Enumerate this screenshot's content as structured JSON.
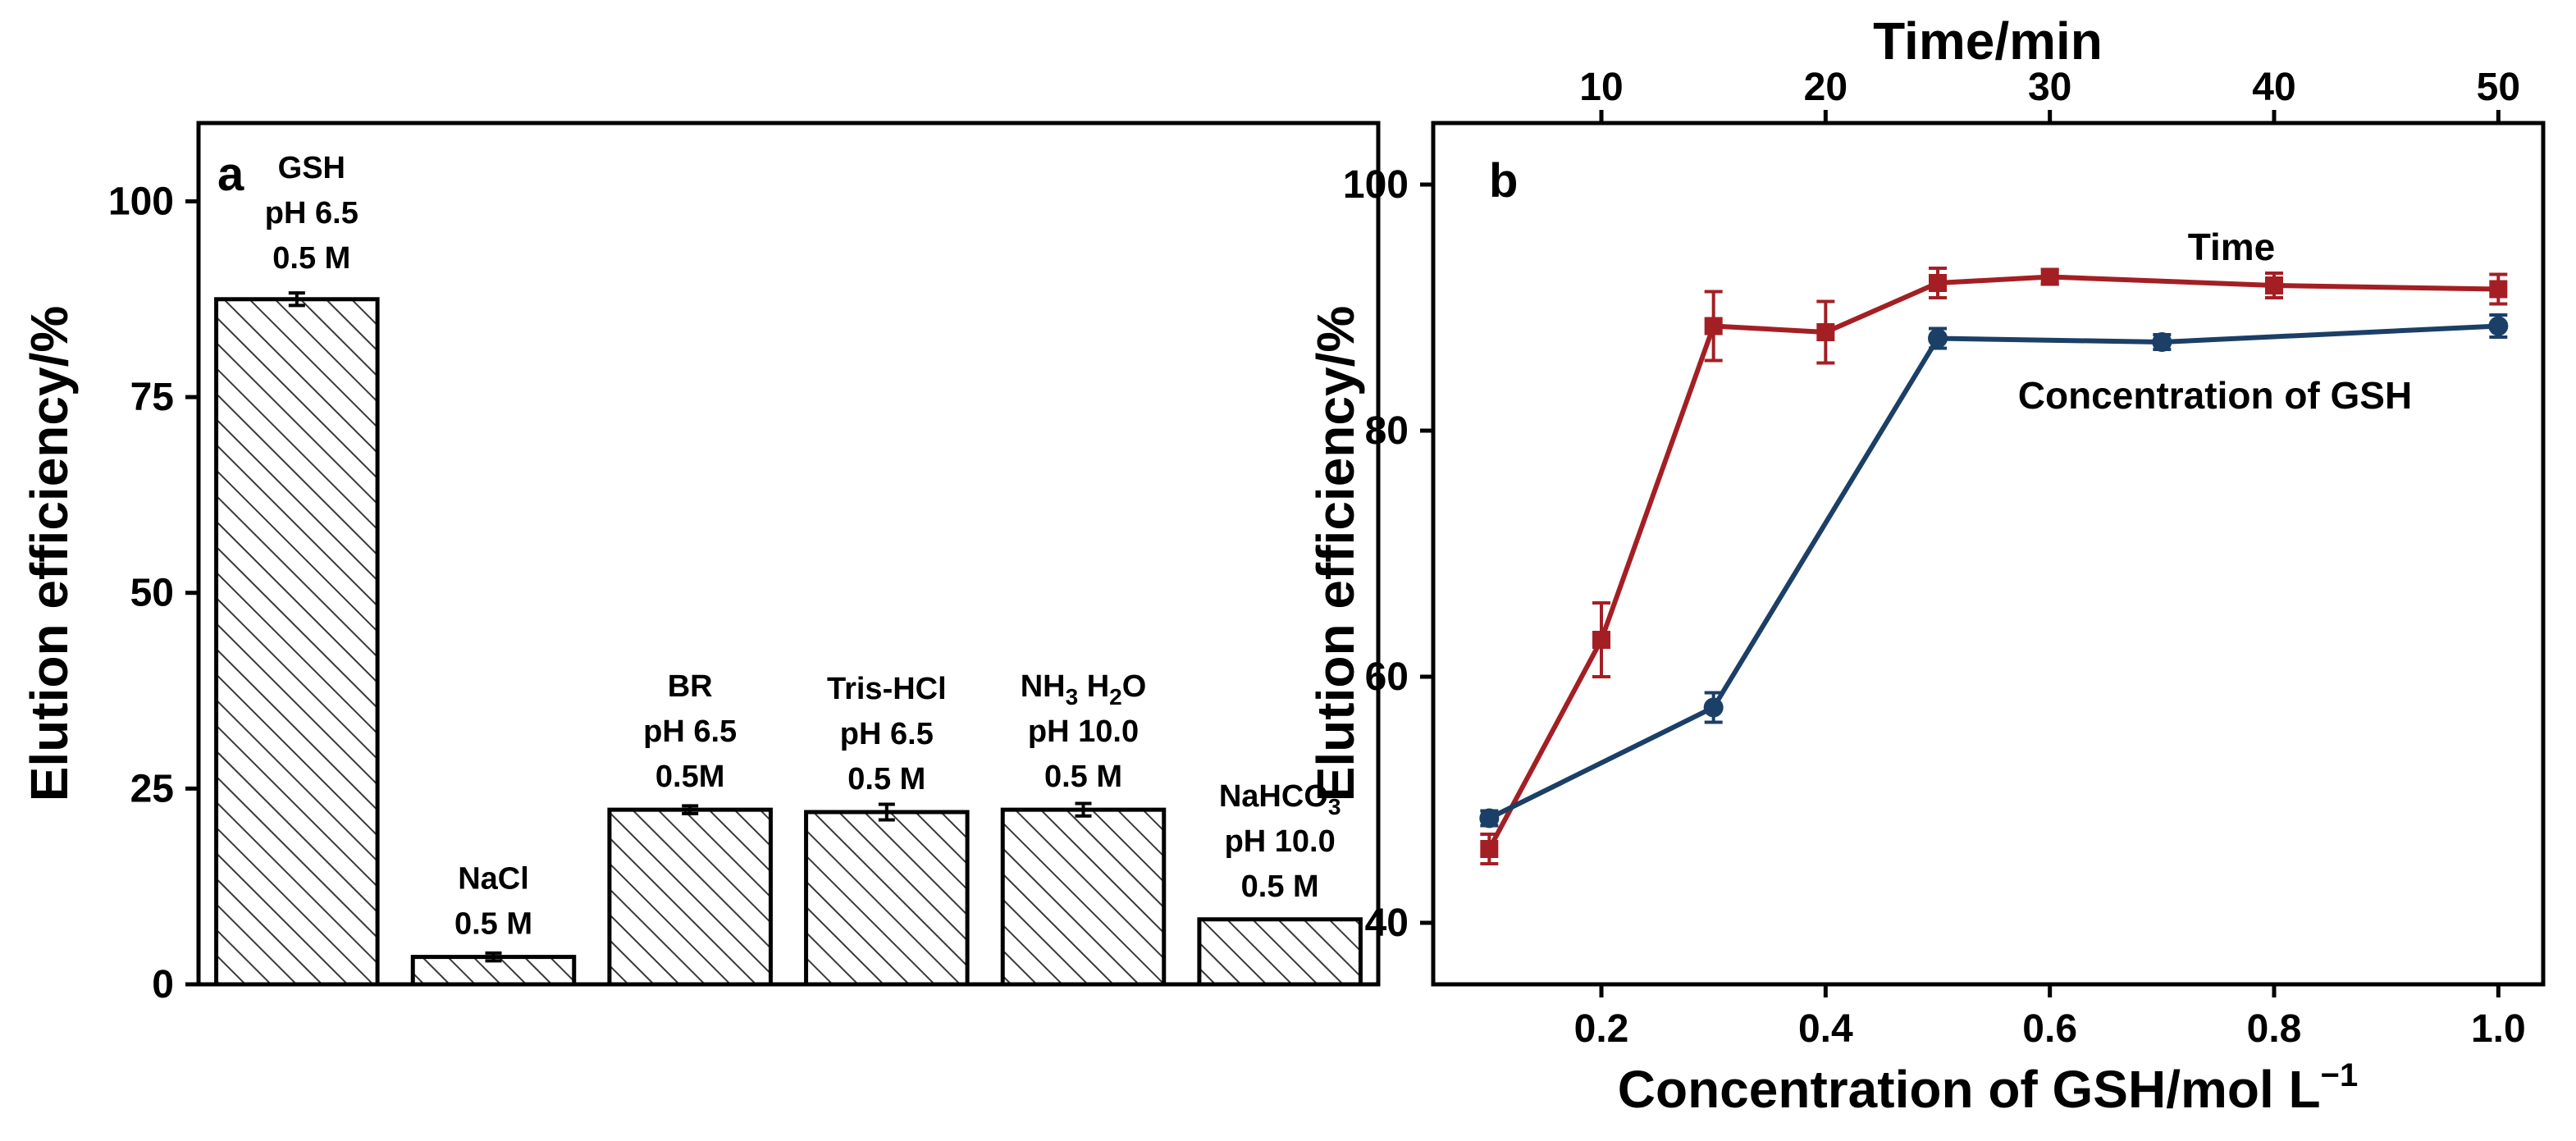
{
  "chart_data": [
    {
      "panel": "a",
      "type": "bar",
      "ylabel": "Elution efficiency/%",
      "ylim": [
        0,
        110
      ],
      "yticks": [
        0,
        25,
        50,
        75,
        100
      ],
      "bar_pattern": "diagonal-hatch",
      "categories": [
        {
          "lines": [
            "GSH",
            "pH 6.5",
            "0.5 M"
          ],
          "value": 87.5,
          "error": 0.8
        },
        {
          "lines": [
            "NaCl",
            "0.5 M"
          ],
          "value": 3.5,
          "error": 0.5
        },
        {
          "lines": [
            "BR",
            "pH 6.5",
            "0.5M"
          ],
          "value": 22.3,
          "error": 0.5
        },
        {
          "lines": [
            "Tris-HCl",
            "pH 6.5",
            "0.5 M"
          ],
          "value": 22.0,
          "error": 1.0
        },
        {
          "lines": [
            "NH3 H2O",
            "pH 10.0",
            "0.5 M"
          ],
          "value": 22.3,
          "error": 0.8
        },
        {
          "lines": [
            "NaHCO3",
            "pH 10.0",
            "0.5 M"
          ],
          "value": 8.3,
          "error": 0
        }
      ],
      "colors": {
        "bar_fill": "#ffffff",
        "hatch": "#3a3a3a",
        "edge": "#000000"
      }
    },
    {
      "panel": "b",
      "type": "line",
      "ylabel": "Elution efficiency/%",
      "xlabel": "Concentration of GSH/mol L",
      "xlabel_superscript": "−1",
      "x2label": "Time/min",
      "xlim": [
        0.05,
        1.04
      ],
      "ylim": [
        35,
        105
      ],
      "xticks": [
        0.2,
        0.4,
        0.6,
        0.8,
        1.0
      ],
      "yticks": [
        40,
        60,
        80,
        100
      ],
      "x2lim": [
        2.5,
        52
      ],
      "x2ticks": [
        10,
        20,
        30,
        40,
        50
      ],
      "series": [
        {
          "name": "Time",
          "axis": "top",
          "marker": "square",
          "color": "#a31f24",
          "x": [
            5,
            10,
            15,
            20,
            25,
            30,
            40,
            50
          ],
          "y": [
            46.0,
            63.0,
            88.5,
            88.0,
            92.0,
            92.5,
            91.8,
            91.5
          ],
          "err": [
            1.2,
            3.0,
            2.8,
            2.5,
            1.2,
            0.6,
            1.0,
            1.2
          ]
        },
        {
          "name": "Concentration of GSH",
          "axis": "bottom",
          "marker": "circle",
          "color": "#1b3f66",
          "x": [
            0.1,
            0.3,
            0.5,
            0.7,
            1.0
          ],
          "y": [
            48.5,
            57.5,
            87.5,
            87.2,
            88.5
          ],
          "err": [
            0.6,
            1.2,
            0.8,
            0.6,
            0.9
          ]
        }
      ]
    }
  ]
}
